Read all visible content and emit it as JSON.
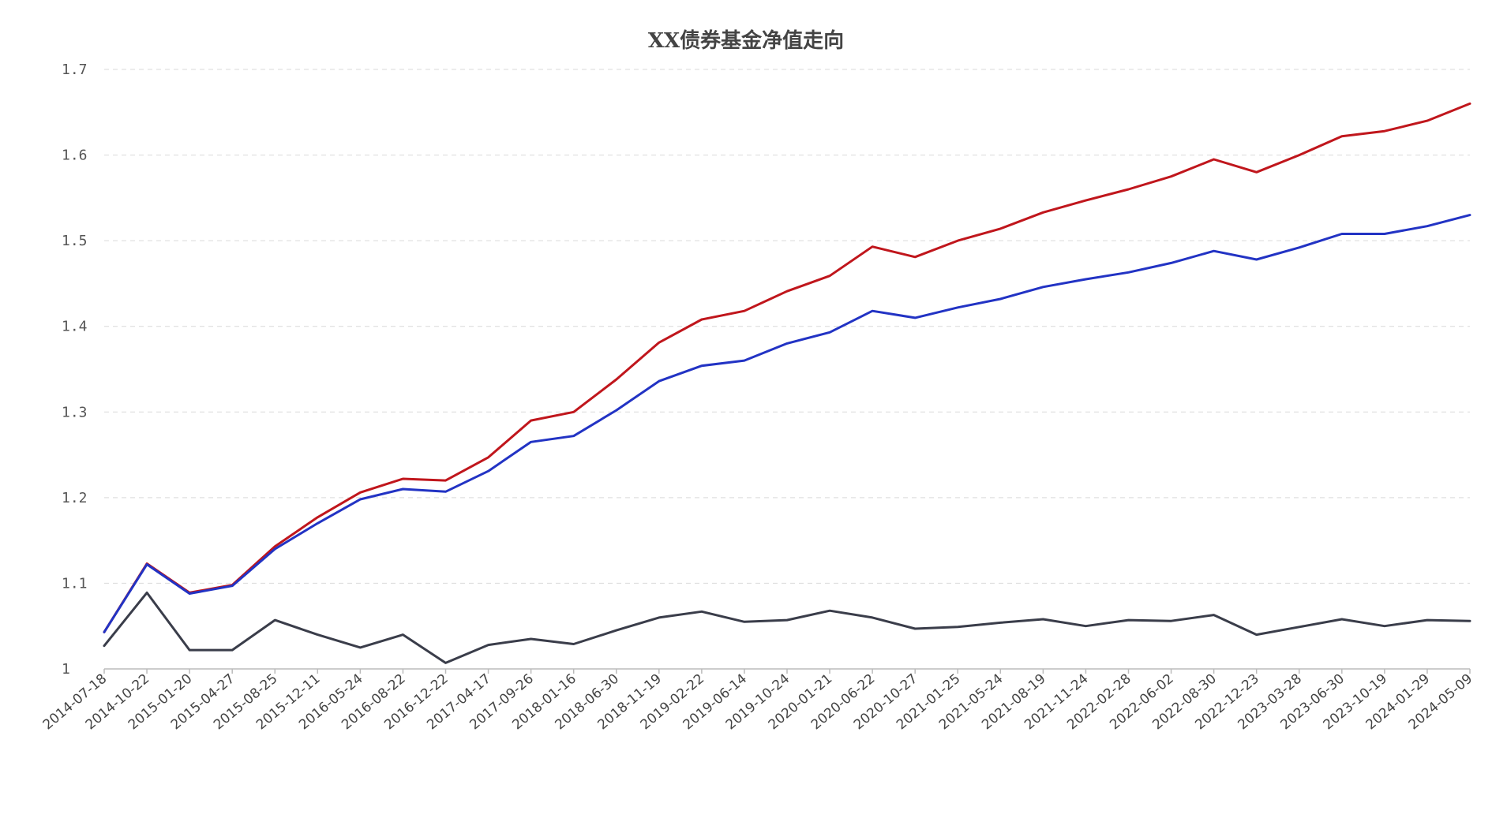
{
  "chart_data": {
    "type": "line",
    "title": "XX债券基金净值走向",
    "xlabel": "",
    "ylabel": "",
    "ylim": [
      1.0,
      1.7
    ],
    "yticks": [
      "1",
      "1.1",
      "1.2",
      "1.3",
      "1.4",
      "1.5",
      "1.6",
      "1.7"
    ],
    "grid": true,
    "legend": "none",
    "x": [
      "2014-07-18",
      "2014-10-22",
      "2015-01-20",
      "2015-04-27",
      "2015-08-25",
      "2015-12-11",
      "2016-05-24",
      "2016-08-22",
      "2016-12-22",
      "2017-04-17",
      "2017-09-26",
      "2018-01-16",
      "2018-06-30",
      "2018-11-19",
      "2019-02-22",
      "2019-06-14",
      "2019-10-24",
      "2020-01-21",
      "2020-06-22",
      "2020-10-27",
      "2021-01-25",
      "2021-05-24",
      "2021-08-19",
      "2021-11-24",
      "2022-02-28",
      "2022-06-02",
      "2022-08-30",
      "2022-12-23",
      "2023-03-28",
      "2023-06-30",
      "2023-10-19",
      "2024-01-29",
      "2024-05-09"
    ],
    "series": [
      {
        "color": "#c0161c",
        "values": [
          1.043,
          1.123,
          1.089,
          1.098,
          1.143,
          1.177,
          1.206,
          1.222,
          1.22,
          1.247,
          1.29,
          1.3,
          1.338,
          1.381,
          1.408,
          1.418,
          1.441,
          1.459,
          1.493,
          1.481,
          1.5,
          1.514,
          1.533,
          1.547,
          1.56,
          1.575,
          1.595,
          1.58,
          1.6,
          1.622,
          1.628,
          1.64,
          1.66
        ]
      },
      {
        "color": "#2233c4",
        "values": [
          1.043,
          1.122,
          1.088,
          1.097,
          1.14,
          1.17,
          1.198,
          1.21,
          1.207,
          1.231,
          1.265,
          1.272,
          1.302,
          1.336,
          1.354,
          1.36,
          1.38,
          1.393,
          1.418,
          1.41,
          1.422,
          1.432,
          1.446,
          1.455,
          1.463,
          1.474,
          1.488,
          1.478,
          1.492,
          1.508,
          1.508,
          1.517,
          1.53
        ]
      },
      {
        "color": "#3a3d4a",
        "values": [
          1.027,
          1.089,
          1.022,
          1.022,
          1.057,
          1.04,
          1.025,
          1.04,
          1.007,
          1.028,
          1.035,
          1.029,
          1.045,
          1.06,
          1.067,
          1.055,
          1.057,
          1.068,
          1.06,
          1.047,
          1.049,
          1.054,
          1.058,
          1.05,
          1.057,
          1.056,
          1.063,
          1.04,
          1.049,
          1.058,
          1.05,
          1.057,
          1.056
        ]
      }
    ]
  }
}
